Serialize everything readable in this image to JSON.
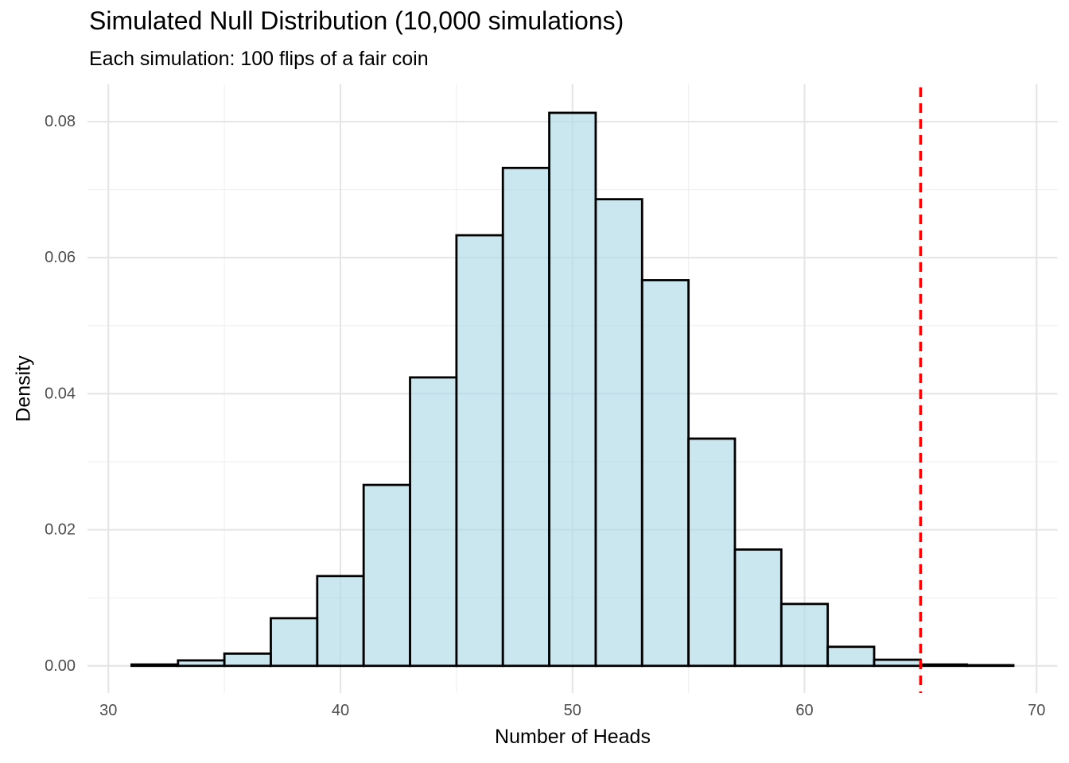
{
  "title": "Simulated Null Distribution (10,000 simulations)",
  "subtitle": "Each simulation: 100 flips of a fair coin",
  "chart_data": {
    "type": "bar",
    "subtype": "histogram",
    "title": "Simulated Null Distribution (10,000 simulations)",
    "subtitle": "Each simulation: 100 flips of a fair coin",
    "xlabel": "Number of Heads",
    "ylabel": "Density",
    "xlim": [
      29.1,
      70.9
    ],
    "ylim": [
      -0.004,
      0.0855
    ],
    "grid": true,
    "legend": false,
    "x_tick_values": [
      30,
      40,
      50,
      60,
      70
    ],
    "x_tick_labels": [
      "30",
      "40",
      "50",
      "60",
      "70"
    ],
    "x_minor_ticks": [
      35,
      45,
      55,
      65
    ],
    "y_tick_values": [
      0.0,
      0.02,
      0.04,
      0.06,
      0.08
    ],
    "y_tick_labels": [
      "0.00",
      "0.02",
      "0.04",
      "0.06",
      "0.08"
    ],
    "y_minor_ticks": [
      0.01,
      0.03,
      0.05,
      0.07
    ],
    "bin_width": 2,
    "bins": [
      {
        "x0": 31,
        "x1": 33,
        "center": 32,
        "density": 0.0002
      },
      {
        "x0": 33,
        "x1": 35,
        "center": 34,
        "density": 0.0008
      },
      {
        "x0": 35,
        "x1": 37,
        "center": 36,
        "density": 0.0018
      },
      {
        "x0": 37,
        "x1": 39,
        "center": 38,
        "density": 0.007
      },
      {
        "x0": 39,
        "x1": 41,
        "center": 40,
        "density": 0.0132
      },
      {
        "x0": 41,
        "x1": 43,
        "center": 42,
        "density": 0.0266
      },
      {
        "x0": 43,
        "x1": 45,
        "center": 44,
        "density": 0.0424
      },
      {
        "x0": 45,
        "x1": 47,
        "center": 46,
        "density": 0.0633
      },
      {
        "x0": 47,
        "x1": 49,
        "center": 48,
        "density": 0.0732
      },
      {
        "x0": 49,
        "x1": 51,
        "center": 50,
        "density": 0.0813
      },
      {
        "x0": 51,
        "x1": 53,
        "center": 52,
        "density": 0.0686
      },
      {
        "x0": 53,
        "x1": 55,
        "center": 54,
        "density": 0.0567
      },
      {
        "x0": 55,
        "x1": 57,
        "center": 56,
        "density": 0.0334
      },
      {
        "x0": 57,
        "x1": 59,
        "center": 58,
        "density": 0.0171
      },
      {
        "x0": 59,
        "x1": 61,
        "center": 60,
        "density": 0.0091
      },
      {
        "x0": 61,
        "x1": 63,
        "center": 62,
        "density": 0.0028
      },
      {
        "x0": 63,
        "x1": 65,
        "center": 64,
        "density": 0.0009
      },
      {
        "x0": 65,
        "x1": 67,
        "center": 66,
        "density": 0.0002
      },
      {
        "x0": 67,
        "x1": 69,
        "center": 68,
        "density": 0.0001
      }
    ],
    "vline": {
      "x": 65,
      "color": "#FF0000",
      "style": "dashed"
    },
    "colors": {
      "bar_fill": "#ADD8E6",
      "bar_fill_opacity": 0.65,
      "bar_stroke": "#000000",
      "grid_major": "#E4E4E4",
      "grid_minor": "#F1F1F1",
      "tick_text": "#4D4D4D",
      "background": "#FFFFFF"
    }
  }
}
